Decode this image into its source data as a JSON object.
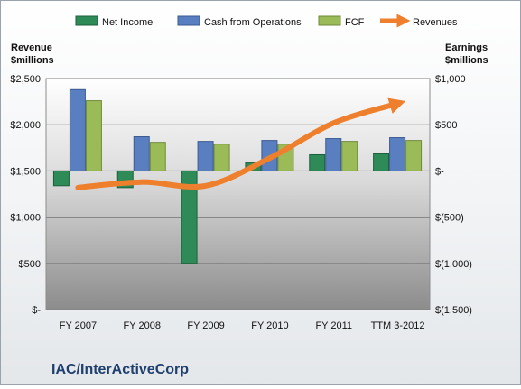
{
  "chart_data": {
    "type": "bar",
    "company": "IAC/InterActiveCorp",
    "categories": [
      "FY 2007",
      "FY 2008",
      "FY 2009",
      "FY 2010",
      "FY 2011",
      "TTM 3-2012"
    ],
    "left_axis": {
      "label_line1": "Revenue",
      "label_line2": "$millions",
      "ticks": [
        0,
        500,
        1000,
        1500,
        2000,
        2500
      ],
      "tick_labels": [
        "$-",
        "$500",
        "$1,000",
        "$1,500",
        "$2,000",
        "$2,500"
      ],
      "range": [
        0,
        2500
      ]
    },
    "right_axis": {
      "label_line1": "Earnings",
      "label_line2": "$millions",
      "ticks": [
        -1500,
        -1000,
        -500,
        0,
        500,
        1000
      ],
      "tick_labels": [
        "$(1,500)",
        "$(1,000)",
        "$(500)",
        "$-",
        "$500",
        "$1,000"
      ],
      "range": [
        -1500,
        1000
      ]
    },
    "series": [
      {
        "name": "Net Income",
        "axis": "right",
        "kind": "bar",
        "color": "#2e8b57",
        "values": [
          -160,
          -180,
          -1000,
          90,
          175,
          185
        ]
      },
      {
        "name": "Cash from Operations",
        "axis": "right",
        "kind": "bar",
        "color": "#5a7fc0",
        "values": [
          880,
          370,
          320,
          330,
          350,
          360
        ]
      },
      {
        "name": "FCF",
        "axis": "right",
        "kind": "bar",
        "color": "#9bbb59",
        "values": [
          760,
          310,
          290,
          290,
          320,
          330
        ]
      },
      {
        "name": "Revenues",
        "axis": "left",
        "kind": "line",
        "color": "#ee7f2d",
        "values": [
          1320,
          1380,
          1340,
          1640,
          2020,
          2230
        ]
      }
    ],
    "grid": true,
    "legend_position": "top"
  }
}
